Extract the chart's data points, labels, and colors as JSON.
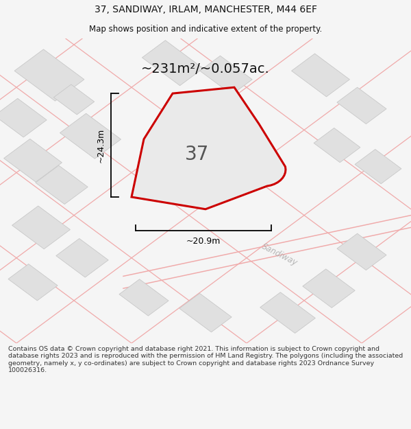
{
  "title_line1": "37, SANDIWAY, IRLAM, MANCHESTER, M44 6EF",
  "title_line2": "Map shows position and indicative extent of the property.",
  "area_text": "~231m²/~0.057ac.",
  "label_37": "37",
  "dim_vertical": "~24.3m",
  "dim_horizontal": "~20.9m",
  "road_label": "Sandiway",
  "footer": "Contains OS data © Crown copyright and database right 2021. This information is subject to Crown copyright and database rights 2023 and is reproduced with the permission of HM Land Registry. The polygons (including the associated geometry, namely x, y co-ordinates) are subject to Crown copyright and database rights 2023 Ordnance Survey 100026316.",
  "bg_color": "#f5f5f5",
  "map_bg": "#efefef",
  "building_fill": "#e0e0e0",
  "building_edge": "#c8c8c8",
  "road_line_color": "#f0aaaa",
  "property_fill": "#eaeaea",
  "property_edge": "#cc0000",
  "dim_color": "#111111",
  "title_color": "#111111",
  "footer_color": "#333333"
}
